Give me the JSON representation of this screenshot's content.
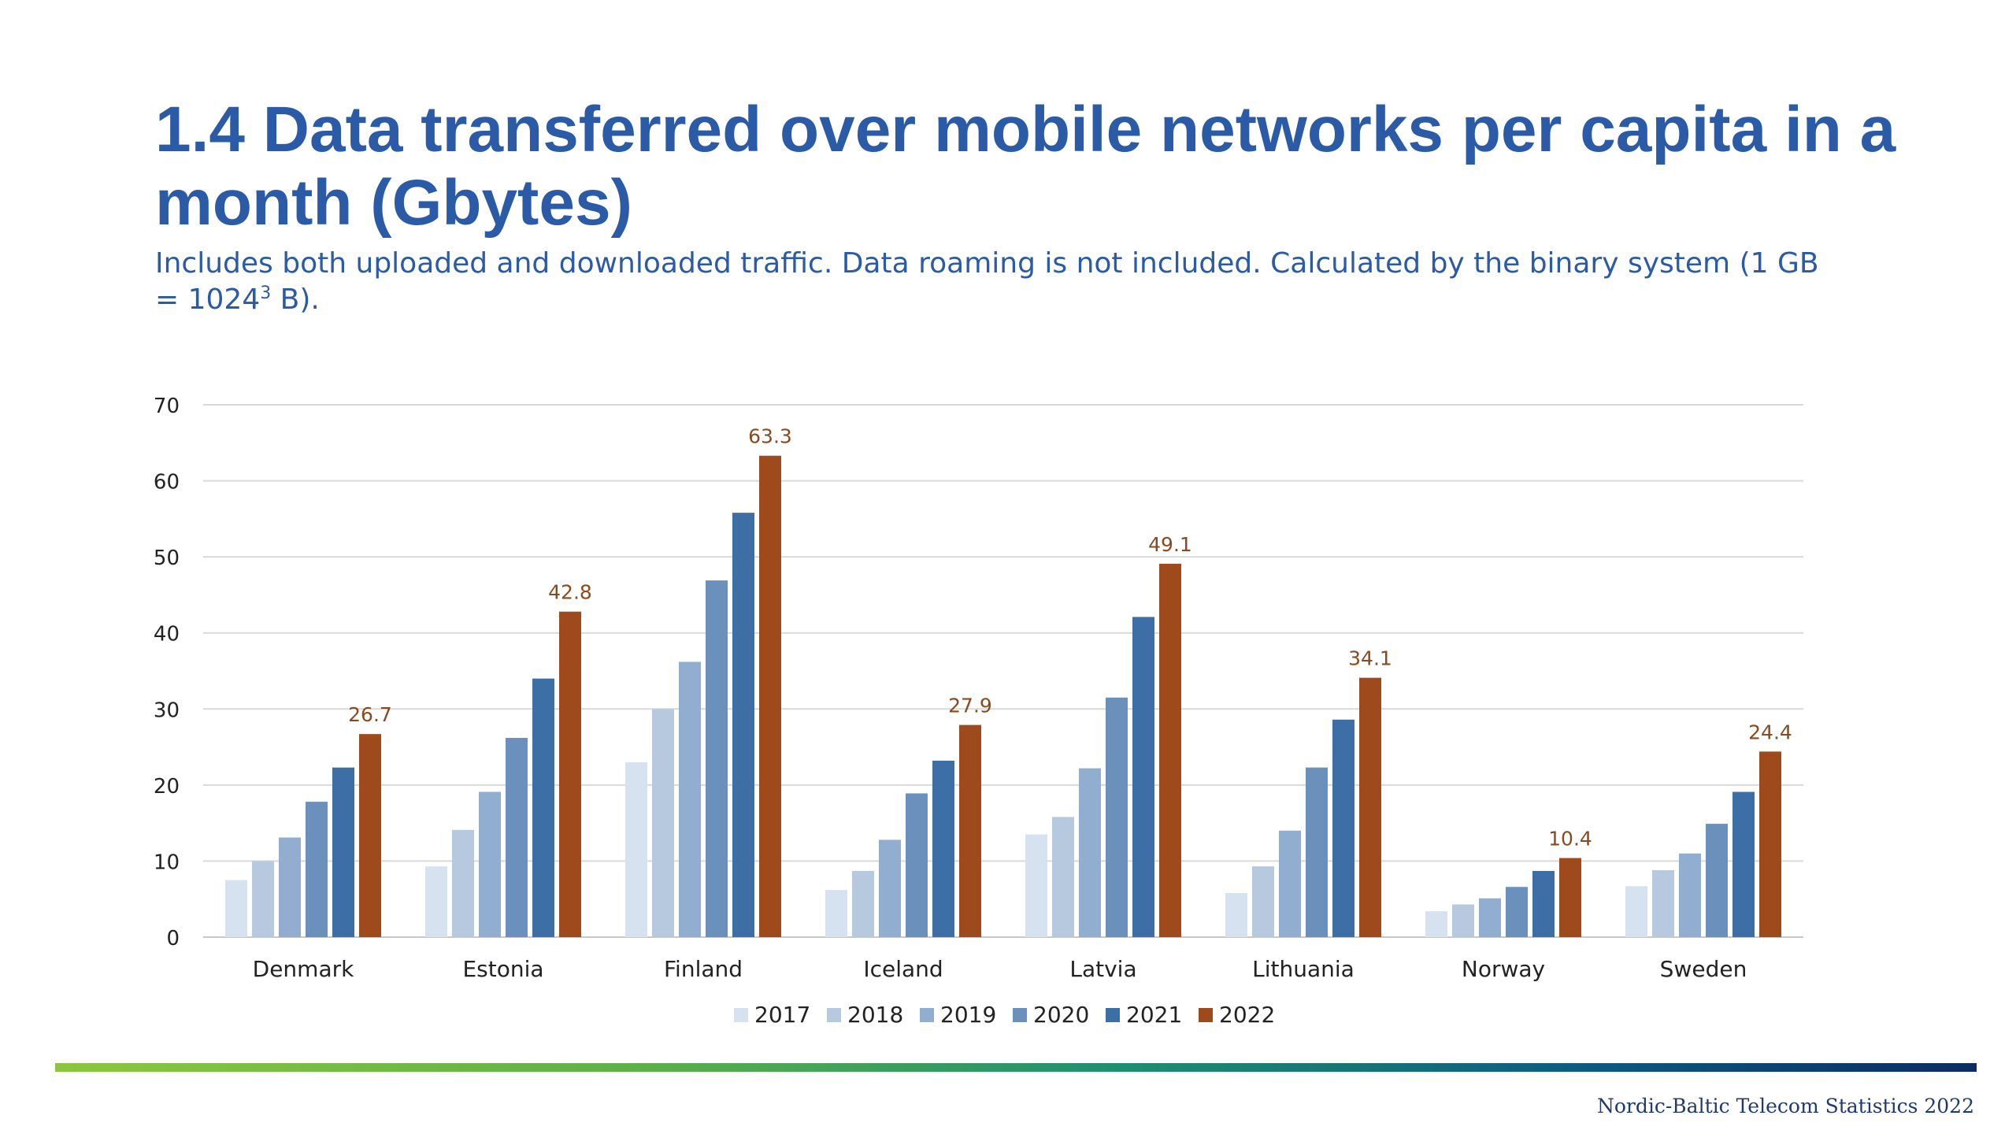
{
  "slide": {
    "title": "1.4 Data transferred over mobile networks per capita in a month (Gbytes)",
    "subtitle_main": "Includes both uploaded and downloaded traffic. Data roaming is not included. Calculated by the binary system (1 GB = 1024",
    "subtitle_sup": "3",
    "subtitle_end": " B).",
    "footer_source": "Nordic-Baltic Telecom Statistics 2022"
  },
  "colors": {
    "title": "#2b5aa6",
    "grid": "#d9d9d9",
    "axis_text": "#222222",
    "label": "#8a4a1f"
  },
  "chart_data": {
    "type": "bar",
    "categories": [
      "Denmark",
      "Estonia",
      "Finland",
      "Iceland",
      "Latvia",
      "Lithuania",
      "Norway",
      "Sweden"
    ],
    "series": [
      {
        "name": "2017",
        "color": "#d6e2ef",
        "values": [
          7.5,
          9.3,
          23.0,
          6.2,
          13.5,
          5.8,
          3.4,
          6.7
        ]
      },
      {
        "name": "2018",
        "color": "#b7c9df",
        "values": [
          10.0,
          14.1,
          30.0,
          8.7,
          15.8,
          9.3,
          4.3,
          8.8
        ]
      },
      {
        "name": "2019",
        "color": "#91aed0",
        "values": [
          13.1,
          19.1,
          36.2,
          12.8,
          22.2,
          14.0,
          5.1,
          11.0
        ]
      },
      {
        "name": "2020",
        "color": "#6a90bb",
        "values": [
          17.8,
          26.2,
          46.9,
          18.9,
          31.5,
          22.3,
          6.6,
          14.9
        ]
      },
      {
        "name": "2021",
        "color": "#3e6ea6",
        "values": [
          22.3,
          34.0,
          55.8,
          23.2,
          42.1,
          28.6,
          8.7,
          19.1
        ]
      },
      {
        "name": "2022",
        "color": "#9e4a1c",
        "values": [
          26.7,
          42.8,
          63.3,
          27.9,
          49.1,
          34.1,
          10.4,
          24.4
        ]
      }
    ],
    "data_labels": [
      "26.7",
      "42.8",
      "63.3",
      "27.9",
      "49.1",
      "34.1",
      "10.4",
      "24.4"
    ],
    "y_ticks": [
      "0",
      "10",
      "20",
      "30",
      "40",
      "50",
      "60",
      "70"
    ],
    "ylim": [
      0,
      70
    ],
    "grid": true,
    "legend_position": "bottom-center"
  }
}
